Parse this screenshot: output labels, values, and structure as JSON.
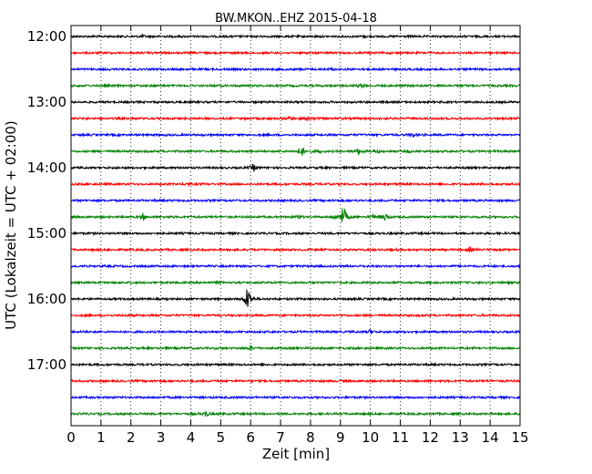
{
  "chart_data": {
    "type": "line",
    "title": "BW.MKON..EHZ 2015-04-18",
    "xlabel": "Zeit  [min]",
    "ylabel": "UTC (Lokalzeit = UTC + 02:00)",
    "xlim": [
      0,
      15
    ],
    "x_ticks": [
      "0",
      "1",
      "2",
      "3",
      "4",
      "5",
      "6",
      "7",
      "8",
      "9",
      "10",
      "11",
      "12",
      "13",
      "14",
      "15"
    ],
    "y_tick_labels": [
      "12:00",
      "13:00",
      "14:00",
      "15:00",
      "16:00",
      "17:00"
    ],
    "grid": "vertical dotted",
    "trace_interval_minutes": 15,
    "series": [
      {
        "start": "12:00",
        "color": "#000000",
        "events": [
          {
            "t": 2.4,
            "amp": 0.1
          },
          {
            "t": 9.8,
            "amp": 0.08
          }
        ]
      },
      {
        "start": "12:15",
        "color": "#ff0000",
        "events": []
      },
      {
        "start": "12:30",
        "color": "#0000ff",
        "events": [
          {
            "t": 8.7,
            "amp": 0.1
          }
        ]
      },
      {
        "start": "12:45",
        "color": "#008000",
        "events": [
          {
            "t": 9.7,
            "amp": 0.25
          }
        ]
      },
      {
        "start": "13:00",
        "color": "#000000",
        "events": []
      },
      {
        "start": "13:15",
        "color": "#ff0000",
        "events": [
          {
            "t": 7.3,
            "amp": 0.2
          },
          {
            "t": 7.9,
            "amp": 0.1
          },
          {
            "t": 8.0,
            "amp": 0.15
          }
        ]
      },
      {
        "start": "13:30",
        "color": "#0000ff",
        "events": [
          {
            "t": 11.4,
            "amp": 0.25
          }
        ]
      },
      {
        "start": "13:45",
        "color": "#008000",
        "events": [
          {
            "t": 7.7,
            "amp": 0.6
          },
          {
            "t": 8.3,
            "amp": 0.15
          },
          {
            "t": 9.6,
            "amp": 0.35
          },
          {
            "t": 10.2,
            "amp": 0.15
          },
          {
            "t": 11.3,
            "amp": 0.1
          }
        ]
      },
      {
        "start": "14:00",
        "color": "#000000",
        "events": [
          {
            "t": 6.1,
            "amp": 0.4
          }
        ]
      },
      {
        "start": "14:15",
        "color": "#ff0000",
        "events": [
          {
            "t": 3.9,
            "amp": 0.15
          }
        ]
      },
      {
        "start": "14:30",
        "color": "#0000ff",
        "events": []
      },
      {
        "start": "14:45",
        "color": "#008000",
        "events": [
          {
            "t": 2.4,
            "amp": 0.3
          },
          {
            "t": 7.6,
            "amp": 0.2
          },
          {
            "t": 8.8,
            "amp": 0.15
          },
          {
            "t": 9.1,
            "amp": 1.45
          },
          {
            "t": 10.1,
            "amp": 0.2
          },
          {
            "t": 10.5,
            "amp": 0.4
          }
        ]
      },
      {
        "start": "15:00",
        "color": "#000000",
        "events": []
      },
      {
        "start": "15:15",
        "color": "#ff0000",
        "events": [
          {
            "t": 13.3,
            "amp": 0.25
          }
        ]
      },
      {
        "start": "15:30",
        "color": "#0000ff",
        "events": []
      },
      {
        "start": "15:45",
        "color": "#008000",
        "events": [
          {
            "t": 4.9,
            "amp": 0.1
          }
        ]
      },
      {
        "start": "16:00",
        "color": "#000000",
        "events": [
          {
            "t": 5.9,
            "amp": 1.6
          }
        ]
      },
      {
        "start": "16:15",
        "color": "#ff0000",
        "events": []
      },
      {
        "start": "16:30",
        "color": "#0000ff",
        "events": [
          {
            "t": 10.0,
            "amp": 0.2
          }
        ]
      },
      {
        "start": "16:45",
        "color": "#008000",
        "events": [
          {
            "t": 6.0,
            "amp": 0.2
          }
        ]
      },
      {
        "start": "17:00",
        "color": "#000000",
        "events": []
      },
      {
        "start": "17:15",
        "color": "#ff0000",
        "events": []
      },
      {
        "start": "17:30",
        "color": "#0000ff",
        "events": []
      },
      {
        "start": "17:45",
        "color": "#008000",
        "events": [
          {
            "t": 4.5,
            "amp": 0.35
          }
        ]
      }
    ]
  }
}
